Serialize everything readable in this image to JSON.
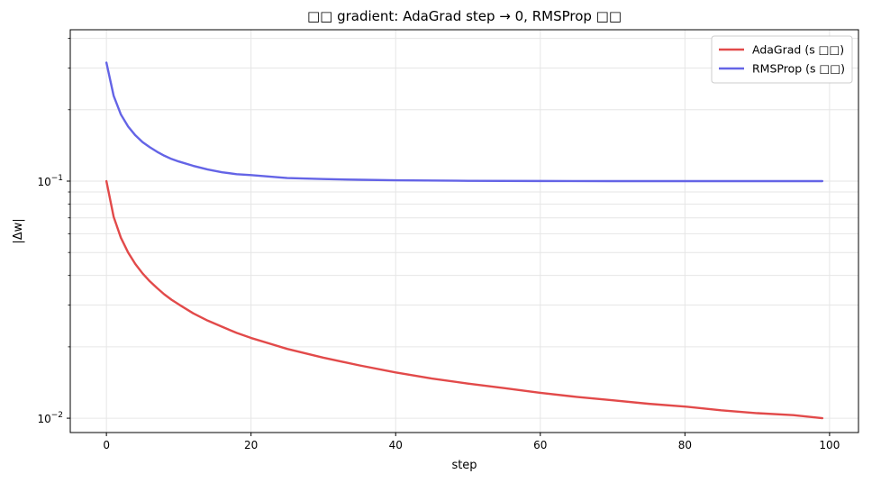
{
  "chart_data": {
    "type": "line",
    "title": "□□ gradient: AdaGrad step → 0, RMSProp □□",
    "xlabel": "step",
    "ylabel": "|Δw|",
    "xlim": [
      -5,
      104
    ],
    "ylim": [
      0.0087,
      0.435
    ],
    "yscale": "log",
    "grid": true,
    "legend_position": "top-right",
    "x_ticks": [
      {
        "value": 0,
        "label": "0"
      },
      {
        "value": 20,
        "label": "20"
      },
      {
        "value": 40,
        "label": "40"
      },
      {
        "value": 60,
        "label": "60"
      },
      {
        "value": 80,
        "label": "80"
      },
      {
        "value": 100,
        "label": "100"
      }
    ],
    "y_major_ticks": [
      {
        "value": 0.01,
        "base": "10",
        "exp": "−2"
      },
      {
        "value": 0.1,
        "base": "10",
        "exp": "−1"
      }
    ],
    "y_minor_ticks": [
      0.02,
      0.03,
      0.04,
      0.05,
      0.06,
      0.07,
      0.08,
      0.09,
      0.2,
      0.3,
      0.4
    ],
    "series": [
      {
        "name": "AdaGrad (s □□)",
        "color": "#e24a4a",
        "points": [
          [
            0,
            0.1
          ],
          [
            1,
            0.0707
          ],
          [
            2,
            0.0577
          ],
          [
            3,
            0.05
          ],
          [
            4,
            0.0447
          ],
          [
            5,
            0.0408
          ],
          [
            6,
            0.0378
          ],
          [
            7,
            0.0354
          ],
          [
            8,
            0.0333
          ],
          [
            9,
            0.0316
          ],
          [
            10,
            0.0302
          ],
          [
            12,
            0.0277
          ],
          [
            14,
            0.0258
          ],
          [
            16,
            0.0243
          ],
          [
            18,
            0.0229
          ],
          [
            20,
            0.0218
          ],
          [
            25,
            0.0196
          ],
          [
            30,
            0.018
          ],
          [
            35,
            0.0167
          ],
          [
            40,
            0.0156
          ],
          [
            45,
            0.0147
          ],
          [
            50,
            0.014
          ],
          [
            55,
            0.0134
          ],
          [
            60,
            0.0128
          ],
          [
            65,
            0.0123
          ],
          [
            70,
            0.0119
          ],
          [
            75,
            0.0115
          ],
          [
            80,
            0.0112
          ],
          [
            85,
            0.0108
          ],
          [
            90,
            0.0105
          ],
          [
            95,
            0.0103
          ],
          [
            99,
            0.01
          ]
        ]
      },
      {
        "name": "RMSProp (s □□)",
        "color": "#6464e6",
        "points": [
          [
            0,
            0.316
          ],
          [
            1,
            0.229
          ],
          [
            2,
            0.191
          ],
          [
            3,
            0.17
          ],
          [
            4,
            0.156
          ],
          [
            5,
            0.146
          ],
          [
            6,
            0.139
          ],
          [
            7,
            0.133
          ],
          [
            8,
            0.128
          ],
          [
            9,
            0.124
          ],
          [
            10,
            0.121
          ],
          [
            12,
            0.116
          ],
          [
            14,
            0.112
          ],
          [
            16,
            0.109
          ],
          [
            18,
            0.107
          ],
          [
            20,
            0.106
          ],
          [
            25,
            0.103
          ],
          [
            30,
            0.102
          ],
          [
            35,
            0.1013
          ],
          [
            40,
            0.1008
          ],
          [
            50,
            0.1003
          ],
          [
            60,
            0.1001
          ],
          [
            70,
            0.1
          ],
          [
            80,
            0.1
          ],
          [
            90,
            0.1
          ],
          [
            99,
            0.1
          ]
        ]
      }
    ]
  }
}
